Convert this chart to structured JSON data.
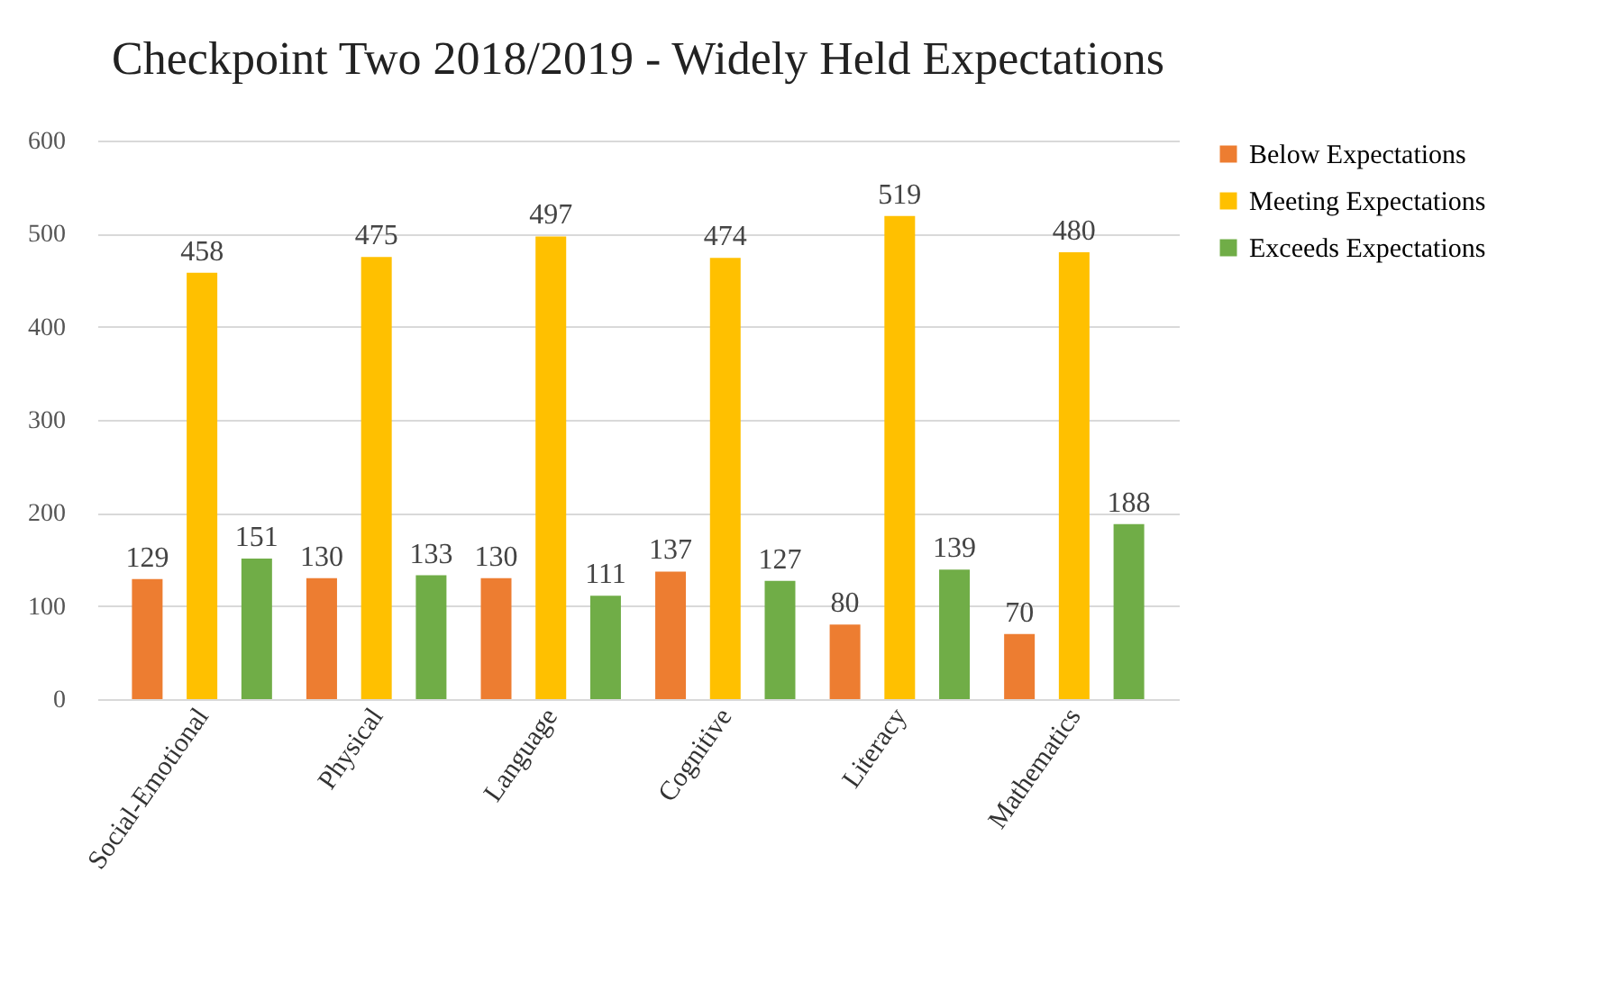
{
  "chart_data": {
    "type": "bar",
    "title": "Checkpoint Two 2018/2019 - Widely Held Expectations",
    "categories": [
      "Social-Emotional",
      "Physical",
      "Language",
      "Cognitive",
      "Literacy",
      "Mathematics"
    ],
    "series": [
      {
        "name": "Below Expectations",
        "color": "#ed7d31",
        "values": [
          129,
          130,
          130,
          137,
          80,
          70
        ]
      },
      {
        "name": "Meeting Expectations",
        "color": "#ffc000",
        "values": [
          458,
          475,
          497,
          474,
          519,
          480
        ]
      },
      {
        "name": "Exceeds Expectations",
        "color": "#70ad47",
        "values": [
          151,
          133,
          111,
          127,
          139,
          188
        ]
      }
    ],
    "ylim": [
      0,
      600
    ],
    "yticks": [
      0,
      100,
      200,
      300,
      400,
      500,
      600
    ],
    "grid": "y",
    "legend": "right",
    "data_labels": true
  }
}
